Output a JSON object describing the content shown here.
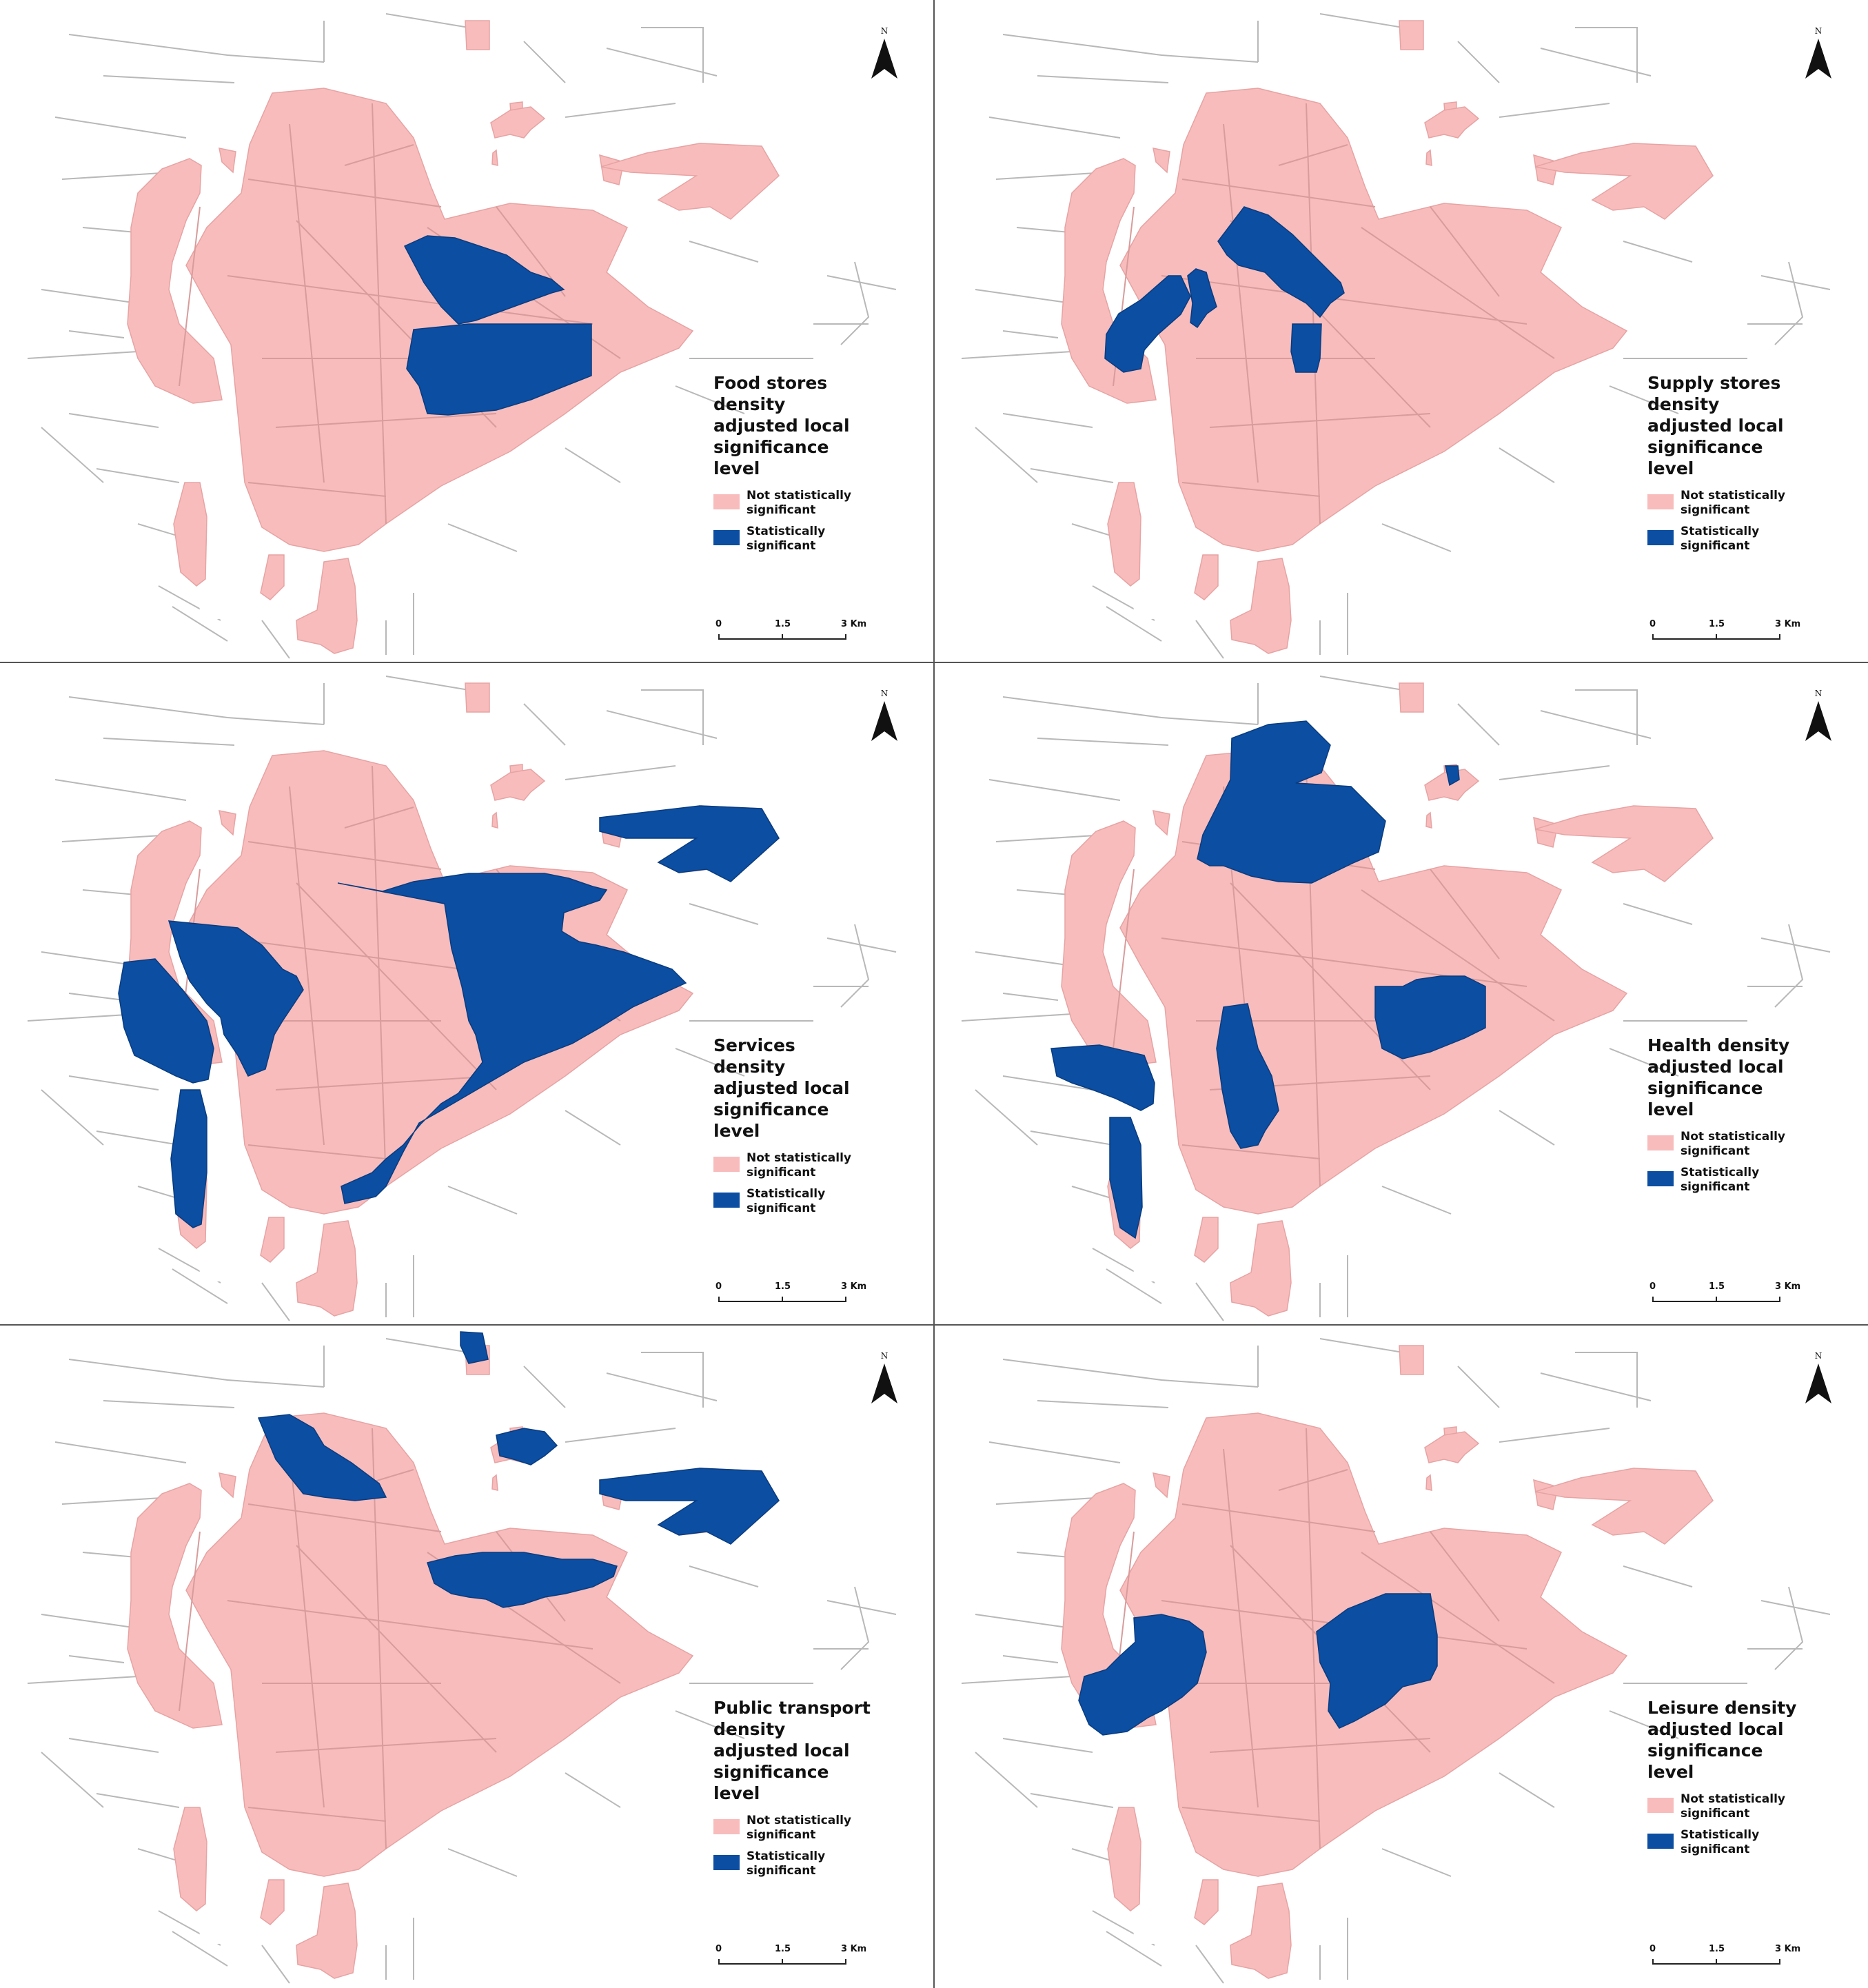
{
  "colors": {
    "not_significant": "#f8bcbc",
    "significant": "#0b4ea2",
    "streets": "#b8b8b8",
    "divider": "#555555"
  },
  "legend_labels": {
    "not_significant": "Not statistically significant",
    "significant": "Statistically significant"
  },
  "scale_bar": {
    "labels": [
      "0",
      "1.5",
      "3 Km"
    ]
  },
  "north_arrow": {
    "label": "N",
    "icon": "north-arrow-icon"
  },
  "panels": [
    {
      "id": "food-stores",
      "title": "Food stores density adjusted local significance level",
      "significant_zones": [
        "z1a",
        "z1b"
      ]
    },
    {
      "id": "supply-stores",
      "title": "Supply stores density adjusted local significance level",
      "significant_zones": [
        "z2a",
        "z2b",
        "z2c",
        "z2d"
      ]
    },
    {
      "id": "services",
      "title": "Services density adjusted local significance level",
      "significant_zones": [
        "z3a",
        "z3b",
        "z3c",
        "z3d",
        "z3e"
      ]
    },
    {
      "id": "health",
      "title": "Health density adjusted local significance level",
      "significant_zones": [
        "z4a",
        "z4b",
        "z4c",
        "z4d",
        "z4e",
        "z4f"
      ]
    },
    {
      "id": "public-transport",
      "title": "Public transport density adjusted local significance level",
      "significant_zones": [
        "z5a",
        "z5b",
        "z5c",
        "z5d",
        "z5e"
      ]
    },
    {
      "id": "leisure",
      "title": "Leisure density adjusted local significance level",
      "significant_zones": [
        "z6a",
        "z6b"
      ]
    }
  ]
}
